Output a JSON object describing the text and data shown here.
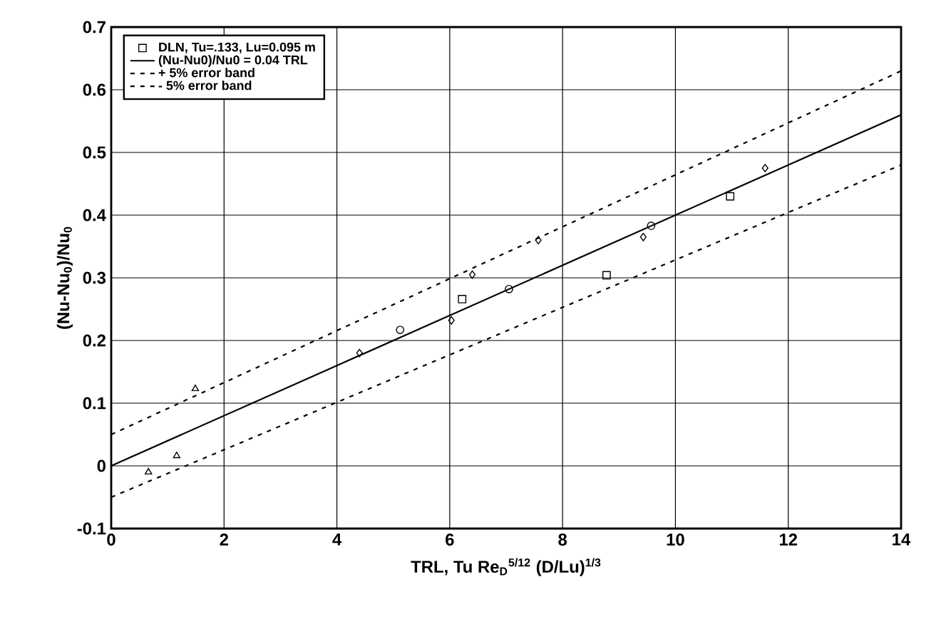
{
  "chart_data": {
    "type": "scatter",
    "xlabel": "TRL, Tu Re$_{D}$$^{5/12}$ (D/Lu)$^{1/3}$",
    "ylabel": "(Nu-Nu$_{0}$)/Nu$_{0}$",
    "xlim": [
      0,
      14
    ],
    "ylim": [
      -0.1,
      0.7
    ],
    "xticks": [
      0,
      2,
      4,
      6,
      8,
      10,
      12,
      14
    ],
    "yticks": [
      -0.1,
      0,
      0.1,
      0.2,
      0.3,
      0.4,
      0.5,
      0.6,
      0.7
    ],
    "grid": true,
    "legend": "top left",
    "series": [
      {
        "marker": "triangle",
        "color": "#000000",
        "x": [
          0.66,
          1.16,
          1.49
        ],
        "values": [
          -0.01,
          0.016,
          0.123
        ]
      },
      {
        "marker": "circle",
        "color": "#000000",
        "x": [
          5.12,
          7.05,
          9.57
        ],
        "values": [
          0.217,
          0.282,
          0.383
        ]
      },
      {
        "marker": "diamond",
        "color": "#000000",
        "x": [
          4.4,
          6.03,
          7.57
        ],
        "values": [
          0.18,
          0.232,
          0.36
        ]
      },
      {
        "marker": "diamond",
        "color": "#000000",
        "x": [
          6.4,
          9.43,
          11.59
        ],
        "values": [
          0.305,
          0.365,
          0.475
        ]
      },
      {
        "marker": "square",
        "color": "#000000",
        "name": "DLN, Tu=.133, Lu=0.095 m",
        "x": [
          6.22,
          8.78,
          10.97
        ],
        "values": [
          0.266,
          0.304,
          0.43
        ]
      },
      {
        "type": "line",
        "marker": "none",
        "line_style": "solid",
        "color": "#000000",
        "name": "(Nu-Nu0)/Nu0 = 0.04 TRL",
        "x": [
          0,
          14
        ],
        "values": [
          0,
          0.56
        ]
      },
      {
        "type": "line",
        "marker": "none",
        "line_style": "dashed",
        "color": "#000000",
        "name": "+ 5% error band",
        "x": [
          0,
          14
        ],
        "values": [
          0.05,
          0.63
        ]
      },
      {
        "type": "line",
        "marker": "none",
        "line_style": "dashed",
        "color": "#000000",
        "name": "- 5% error band",
        "x": [
          0,
          14
        ],
        "values": [
          -0.05,
          0.48
        ]
      }
    ]
  }
}
